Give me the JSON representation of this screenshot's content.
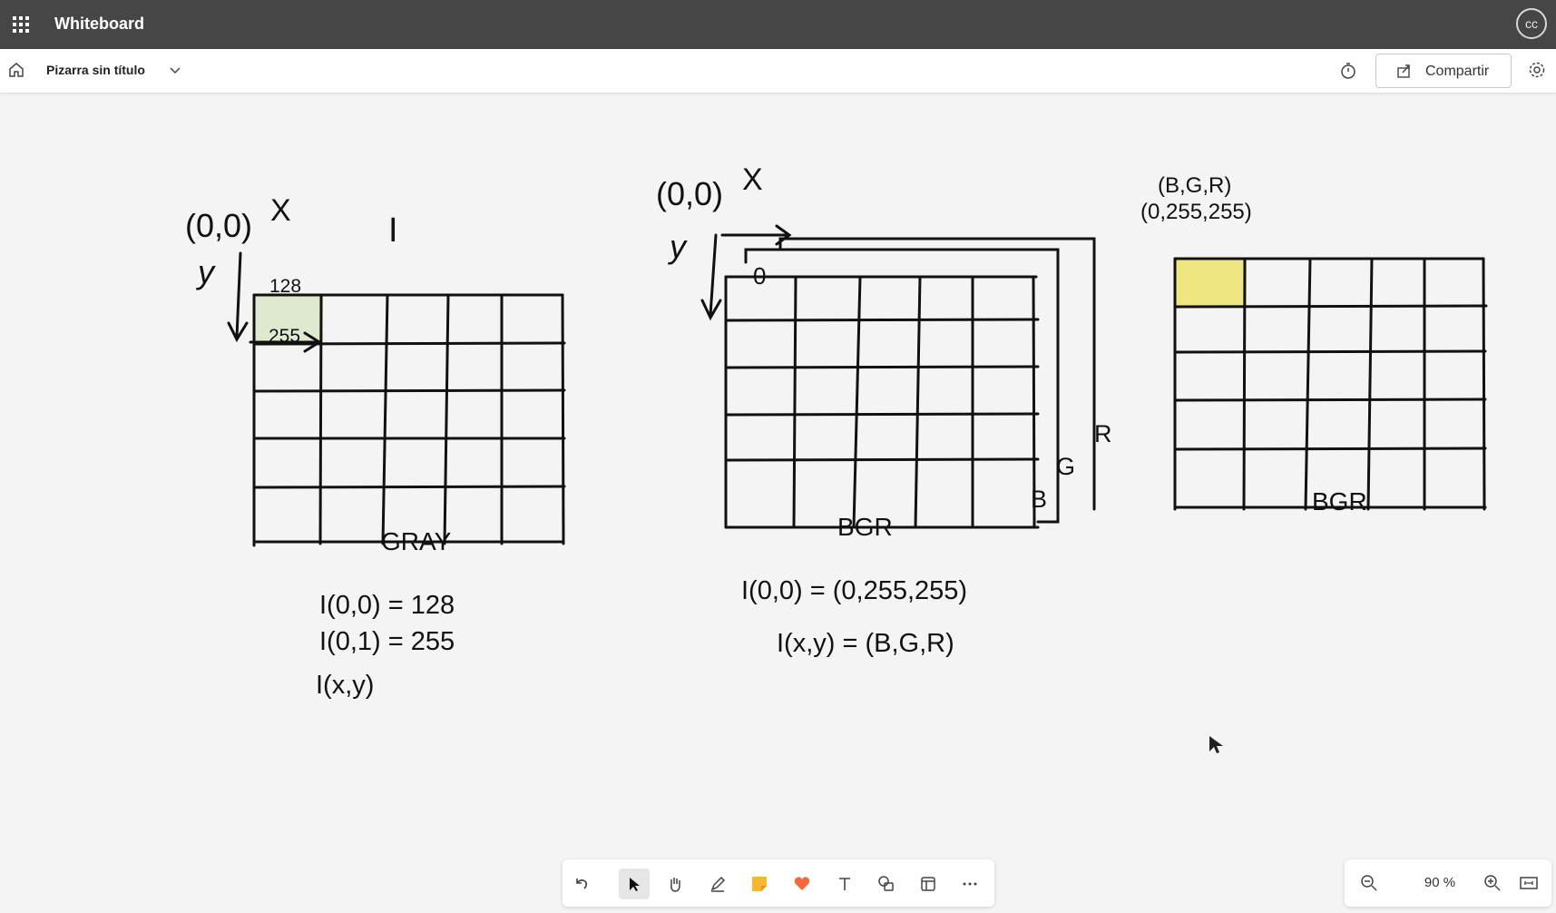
{
  "app": {
    "title": "Whiteboard",
    "user_initials": "cc"
  },
  "board": {
    "title": "Pizarra sin título",
    "share_label": "Compartir"
  },
  "zoom": {
    "level": "90 %"
  },
  "canvas": {
    "gray": {
      "origin": "(0,0)",
      "x_axis": "X",
      "y_axis": "y",
      "image_label": "I",
      "cell_1": "128",
      "cell_2": "255",
      "caption": "GRAY",
      "eq1": "I(0,0) = 128",
      "eq2": "I(0,1) = 255",
      "eq3": "I(x,y)"
    },
    "bgr": {
      "origin": "(0,0)",
      "x_axis": "X",
      "y_axis": "y",
      "cell_1": "0",
      "layer_b": "B",
      "layer_g": "G",
      "layer_r": "R",
      "caption": "BGR",
      "eq1": "I(0,0) = (0,255,255)",
      "eq2": "I(x,y) = (B,G,R)"
    },
    "bgr_color": {
      "tuple_label": "(B,G,R)",
      "tuple_value": "(0,255,255)",
      "caption": "BGR",
      "highlight_color": "#efe682"
    }
  },
  "toolbar": {
    "tools": [
      "undo-icon",
      "select-icon",
      "hand-icon",
      "pen-icon",
      "sticky-note-icon",
      "reaction-icon",
      "text-icon",
      "shapes-icon",
      "template-icon",
      "more-icon"
    ]
  },
  "colors": {
    "appbar": "#464646",
    "gray_highlight": "#dfe9cf"
  }
}
